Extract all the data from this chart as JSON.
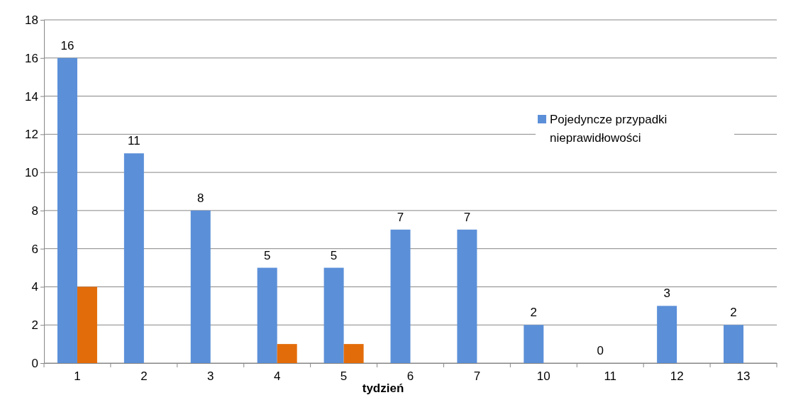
{
  "chart_data": {
    "type": "bar",
    "xlabel": "tydzień",
    "categories": [
      "1",
      "2",
      "3",
      "4",
      "5",
      "6",
      "7",
      "10",
      "11",
      "12",
      "13"
    ],
    "series": [
      {
        "name": "Pojedyncze przypadki nieprawidłowości",
        "color": "#5b8fd8",
        "values": [
          16,
          11,
          8,
          5,
          5,
          7,
          7,
          2,
          0,
          3,
          2
        ],
        "value_labels": [
          "16",
          "11",
          "8",
          "5",
          "5",
          "7",
          "7",
          "2",
          "0",
          "3",
          "2"
        ]
      },
      {
        "color": "#e36c0a",
        "values": [
          4,
          null,
          null,
          1,
          1,
          null,
          null,
          null,
          null,
          null,
          null
        ]
      }
    ],
    "ylim": [
      0,
      18
    ],
    "yticks": [
      0,
      2,
      4,
      6,
      8,
      10,
      12,
      14,
      16,
      18
    ],
    "grid": "y",
    "legend": "right"
  }
}
